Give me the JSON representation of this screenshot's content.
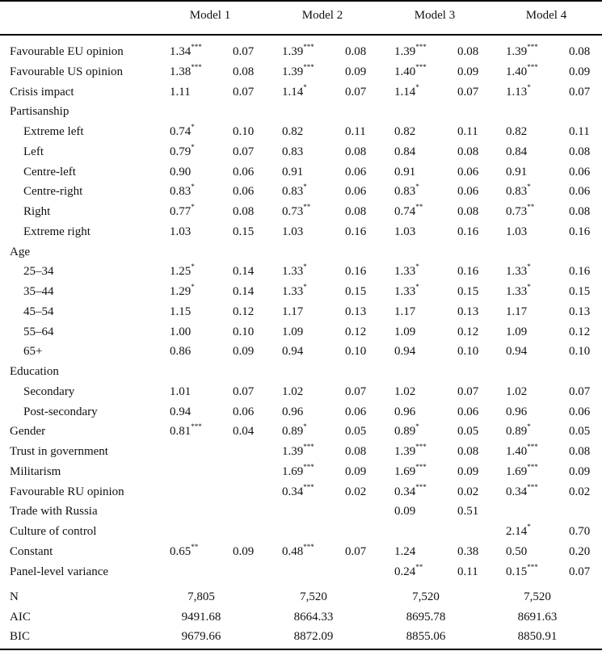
{
  "table": {
    "models": [
      "Model 1",
      "Model 2",
      "Model 3",
      "Model 4"
    ],
    "rows": [
      {
        "label": "Favourable EU opinion",
        "indent": false,
        "cells": [
          [
            "1.34",
            "***",
            "0.07"
          ],
          [
            "1.39",
            "***",
            "0.08"
          ],
          [
            "1.39",
            "***",
            "0.08"
          ],
          [
            "1.39",
            "***",
            "0.08"
          ]
        ]
      },
      {
        "label": "Favourable US opinion",
        "indent": false,
        "cells": [
          [
            "1.38",
            "***",
            "0.08"
          ],
          [
            "1.39",
            "***",
            "0.09"
          ],
          [
            "1.40",
            "***",
            "0.09"
          ],
          [
            "1.40",
            "***",
            "0.09"
          ]
        ]
      },
      {
        "label": "Crisis impact",
        "indent": false,
        "cells": [
          [
            "1.11",
            "",
            "0.07"
          ],
          [
            "1.14",
            "*",
            "0.07"
          ],
          [
            "1.14",
            "*",
            "0.07"
          ],
          [
            "1.13",
            "*",
            "0.07"
          ]
        ]
      },
      {
        "label": "Partisanship",
        "indent": false,
        "cells": [
          [
            "",
            "",
            ""
          ],
          [
            "",
            "",
            ""
          ],
          [
            "",
            "",
            ""
          ],
          [
            "",
            "",
            ""
          ]
        ]
      },
      {
        "label": "Extreme left",
        "indent": true,
        "cells": [
          [
            "0.74",
            "*",
            "0.10"
          ],
          [
            "0.82",
            "",
            "0.11"
          ],
          [
            "0.82",
            "",
            "0.11"
          ],
          [
            "0.82",
            "",
            "0.11"
          ]
        ]
      },
      {
        "label": "Left",
        "indent": true,
        "cells": [
          [
            "0.79",
            "*",
            "0.07"
          ],
          [
            "0.83",
            "",
            "0.08"
          ],
          [
            "0.84",
            "",
            "0.08"
          ],
          [
            "0.84",
            "",
            "0.08"
          ]
        ]
      },
      {
        "label": "Centre-left",
        "indent": true,
        "cells": [
          [
            "0.90",
            "",
            "0.06"
          ],
          [
            "0.91",
            "",
            "0.06"
          ],
          [
            "0.91",
            "",
            "0.06"
          ],
          [
            "0.91",
            "",
            "0.06"
          ]
        ]
      },
      {
        "label": "Centre-right",
        "indent": true,
        "cells": [
          [
            "0.83",
            "*",
            "0.06"
          ],
          [
            "0.83",
            "*",
            "0.06"
          ],
          [
            "0.83",
            "*",
            "0.06"
          ],
          [
            "0.83",
            "*",
            "0.06"
          ]
        ]
      },
      {
        "label": "Right",
        "indent": true,
        "cells": [
          [
            "0.77",
            "*",
            "0.08"
          ],
          [
            "0.73",
            "**",
            "0.08"
          ],
          [
            "0.74",
            "**",
            "0.08"
          ],
          [
            "0.73",
            "**",
            "0.08"
          ]
        ]
      },
      {
        "label": "Extreme right",
        "indent": true,
        "cells": [
          [
            "1.03",
            "",
            "0.15"
          ],
          [
            "1.03",
            "",
            "0.16"
          ],
          [
            "1.03",
            "",
            "0.16"
          ],
          [
            "1.03",
            "",
            "0.16"
          ]
        ]
      },
      {
        "label": "Age",
        "indent": false,
        "cells": [
          [
            "",
            "",
            ""
          ],
          [
            "",
            "",
            ""
          ],
          [
            "",
            "",
            ""
          ],
          [
            "",
            "",
            ""
          ]
        ]
      },
      {
        "label": "25–34",
        "indent": true,
        "cells": [
          [
            "1.25",
            "*",
            "0.14"
          ],
          [
            "1.33",
            "*",
            "0.16"
          ],
          [
            "1.33",
            "*",
            "0.16"
          ],
          [
            "1.33",
            "*",
            "0.16"
          ]
        ]
      },
      {
        "label": "35–44",
        "indent": true,
        "cells": [
          [
            "1.29",
            "*",
            "0.14"
          ],
          [
            "1.33",
            "*",
            "0.15"
          ],
          [
            "1.33",
            "*",
            "0.15"
          ],
          [
            "1.33",
            "*",
            "0.15"
          ]
        ]
      },
      {
        "label": "45–54",
        "indent": true,
        "cells": [
          [
            "1.15",
            "",
            "0.12"
          ],
          [
            "1.17",
            "",
            "0.13"
          ],
          [
            "1.17",
            "",
            "0.13"
          ],
          [
            "1.17",
            "",
            "0.13"
          ]
        ]
      },
      {
        "label": "55–64",
        "indent": true,
        "cells": [
          [
            "1.00",
            "",
            "0.10"
          ],
          [
            "1.09",
            "",
            "0.12"
          ],
          [
            "1.09",
            "",
            "0.12"
          ],
          [
            "1.09",
            "",
            "0.12"
          ]
        ]
      },
      {
        "label": "65+",
        "indent": true,
        "cells": [
          [
            "0.86",
            "",
            "0.09"
          ],
          [
            "0.94",
            "",
            "0.10"
          ],
          [
            "0.94",
            "",
            "0.10"
          ],
          [
            "0.94",
            "",
            "0.10"
          ]
        ]
      },
      {
        "label": "Education",
        "indent": false,
        "cells": [
          [
            "",
            "",
            ""
          ],
          [
            "",
            "",
            ""
          ],
          [
            "",
            "",
            ""
          ],
          [
            "",
            "",
            ""
          ]
        ]
      },
      {
        "label": "Secondary",
        "indent": true,
        "cells": [
          [
            "1.01",
            "",
            "0.07"
          ],
          [
            "1.02",
            "",
            "0.07"
          ],
          [
            "1.02",
            "",
            "0.07"
          ],
          [
            "1.02",
            "",
            "0.07"
          ]
        ]
      },
      {
        "label": "Post-secondary",
        "indent": true,
        "cells": [
          [
            "0.94",
            "",
            "0.06"
          ],
          [
            "0.96",
            "",
            "0.06"
          ],
          [
            "0.96",
            "",
            "0.06"
          ],
          [
            "0.96",
            "",
            "0.06"
          ]
        ]
      },
      {
        "label": "Gender",
        "indent": false,
        "cells": [
          [
            "0.81",
            "***",
            "0.04"
          ],
          [
            "0.89",
            "*",
            "0.05"
          ],
          [
            "0.89",
            "*",
            "0.05"
          ],
          [
            "0.89",
            "*",
            "0.05"
          ]
        ]
      },
      {
        "label": "Trust in government",
        "indent": false,
        "cells": [
          [
            "",
            "",
            ""
          ],
          [
            "1.39",
            "***",
            "0.08"
          ],
          [
            "1.39",
            "***",
            "0.08"
          ],
          [
            "1.40",
            "***",
            "0.08"
          ]
        ]
      },
      {
        "label": "Militarism",
        "indent": false,
        "cells": [
          [
            "",
            "",
            ""
          ],
          [
            "1.69",
            "***",
            "0.09"
          ],
          [
            "1.69",
            "***",
            "0.09"
          ],
          [
            "1.69",
            "***",
            "0.09"
          ]
        ]
      },
      {
        "label": "Favourable RU opinion",
        "indent": false,
        "cells": [
          [
            "",
            "",
            ""
          ],
          [
            "0.34",
            "***",
            "0.02"
          ],
          [
            "0.34",
            "***",
            "0.02"
          ],
          [
            "0.34",
            "***",
            "0.02"
          ]
        ]
      },
      {
        "label": "Trade with Russia",
        "indent": false,
        "cells": [
          [
            "",
            "",
            ""
          ],
          [
            "",
            "",
            ""
          ],
          [
            "0.09",
            "",
            "0.51"
          ],
          [
            "",
            "",
            ""
          ]
        ]
      },
      {
        "label": "Culture of control",
        "indent": false,
        "cells": [
          [
            "",
            "",
            ""
          ],
          [
            "",
            "",
            ""
          ],
          [
            "",
            "",
            ""
          ],
          [
            "2.14",
            "*",
            "0.70"
          ]
        ]
      },
      {
        "label": "Constant",
        "indent": false,
        "cells": [
          [
            "0.65",
            "**",
            "0.09"
          ],
          [
            "0.48",
            "***",
            "0.07"
          ],
          [
            "1.24",
            "",
            "0.38"
          ],
          [
            "0.50",
            "",
            "0.20"
          ]
        ]
      },
      {
        "label": "Panel-level variance",
        "indent": false,
        "cells": [
          [
            "",
            "",
            ""
          ],
          [
            "",
            "",
            ""
          ],
          [
            "0.24",
            "**",
            "0.11"
          ],
          [
            "0.15",
            "***",
            "0.07"
          ]
        ]
      }
    ],
    "stats": [
      {
        "label": "N",
        "values": [
          "7,805",
          "7,520",
          "7,520",
          "7,520"
        ]
      },
      {
        "label": "AIC",
        "values": [
          "9491.68",
          "8664.33",
          "8695.78",
          "8691.63"
        ]
      },
      {
        "label": "BIC",
        "values": [
          "9679.66",
          "8872.09",
          "8855.06",
          "8850.91"
        ]
      }
    ]
  }
}
